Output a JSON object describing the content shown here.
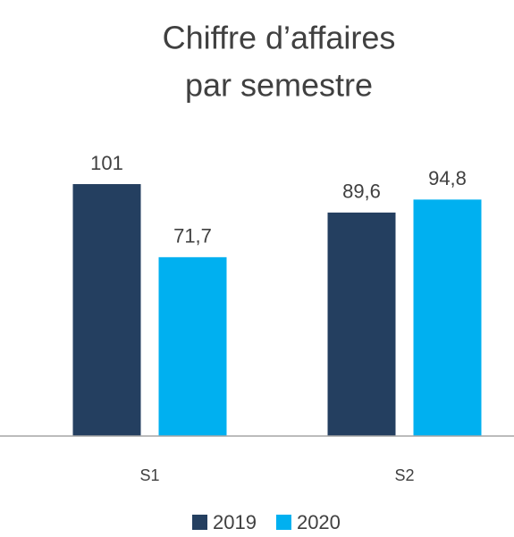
{
  "chart_data": {
    "type": "bar",
    "title": [
      "Chiffre d’affaires",
      "par semestre"
    ],
    "categories": [
      "S1",
      "S2"
    ],
    "series": [
      {
        "name": "2019",
        "color": "#243f60",
        "values": [
          101,
          89.6
        ],
        "value_labels": [
          "101",
          "89,6"
        ]
      },
      {
        "name": "2020",
        "color": "#00b0f0",
        "values": [
          71.7,
          94.8
        ],
        "value_labels": [
          "71,7",
          "94,8"
        ]
      }
    ],
    "ylim": [
      0,
      120
    ],
    "grid": false,
    "legend": "bottom"
  }
}
